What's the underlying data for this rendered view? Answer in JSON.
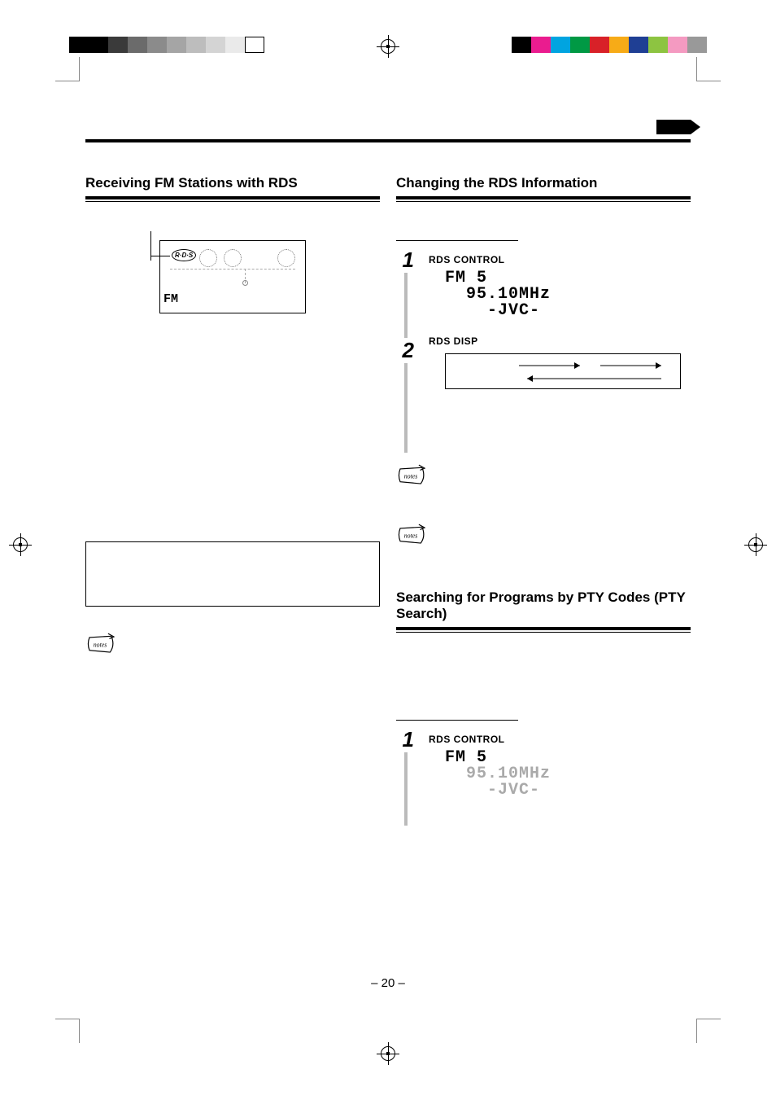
{
  "print_marks": {
    "left_swatches": [
      "#000000",
      "#000000",
      "#3a3a3a",
      "#6b6b6b",
      "#8b8b8b",
      "#a5a5a5",
      "#bdbdbd",
      "#d4d4d4",
      "#eaeaea",
      "#ffffff"
    ],
    "right_swatches": [
      "#000000",
      "#ea1c8f",
      "#00a4e0",
      "#009944",
      "#d82128",
      "#f7ab17",
      "#1f3f94",
      "#8dc441",
      "#f49ac1",
      "#999999"
    ]
  },
  "arrow_tab_color": "#000000",
  "left": {
    "title": "Receiving FM Stations with RDS",
    "diagram": {
      "rds_label": "R·D·S",
      "fm_label": "FM"
    }
  },
  "right": {
    "title": "Changing the RDS Information",
    "step1": {
      "num": "1",
      "label": "RDS CONTROL"
    },
    "lcd1": {
      "line1": "FM 5",
      "line2": "  95.10MHz",
      "line3": "    -JVC-"
    },
    "step2": {
      "num": "2",
      "label": "RDS DISP"
    },
    "section2_title": "Searching for Programs by PTY Codes (PTY Search)",
    "step1b": {
      "num": "1",
      "label": "RDS CONTROL"
    },
    "lcd2": {
      "line1": "FM 5",
      "line2": "  95.10MHz",
      "line3": "    -JVC-"
    }
  },
  "page_number": "– 20 –",
  "colors": {
    "text": "#000000",
    "background": "#ffffff",
    "step_bar": "#bbbbbb",
    "faded": "#aaaaaa"
  }
}
